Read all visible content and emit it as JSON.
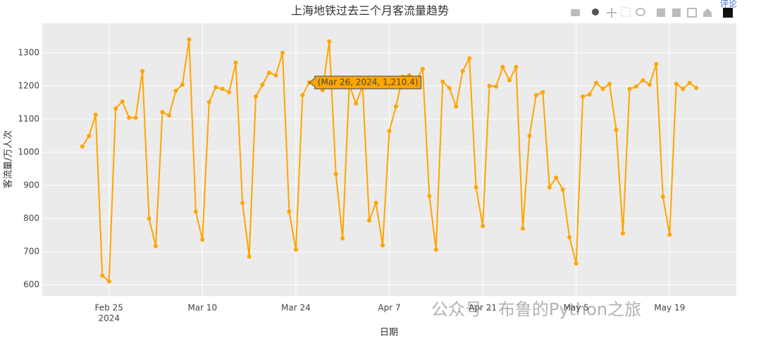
{
  "chart_data": {
    "type": "line",
    "title": "上海地铁过去三个月客流量趋势",
    "x_label": "日期",
    "y_label": "客流量/万人次",
    "x": [
      "2024-02-21",
      "2024-02-22",
      "2024-02-23",
      "2024-02-24",
      "2024-02-25",
      "2024-02-26",
      "2024-02-27",
      "2024-02-28",
      "2024-02-29",
      "2024-03-01",
      "2024-03-02",
      "2024-03-03",
      "2024-03-04",
      "2024-03-05",
      "2024-03-06",
      "2024-03-07",
      "2024-03-08",
      "2024-03-09",
      "2024-03-10",
      "2024-03-11",
      "2024-03-12",
      "2024-03-13",
      "2024-03-14",
      "2024-03-15",
      "2024-03-16",
      "2024-03-17",
      "2024-03-18",
      "2024-03-19",
      "2024-03-20",
      "2024-03-21",
      "2024-03-22",
      "2024-03-23",
      "2024-03-24",
      "2024-03-25",
      "2024-03-26",
      "2024-03-27",
      "2024-03-28",
      "2024-03-29",
      "2024-03-30",
      "2024-03-31",
      "2024-04-01",
      "2024-04-02",
      "2024-04-03",
      "2024-04-04",
      "2024-04-05",
      "2024-04-06",
      "2024-04-07",
      "2024-04-08",
      "2024-04-09",
      "2024-04-10",
      "2024-04-11",
      "2024-04-12",
      "2024-04-13",
      "2024-04-14",
      "2024-04-15",
      "2024-04-16",
      "2024-04-17",
      "2024-04-18",
      "2024-04-19",
      "2024-04-20",
      "2024-04-21",
      "2024-04-22",
      "2024-04-23",
      "2024-04-24",
      "2024-04-25",
      "2024-04-26",
      "2024-04-27",
      "2024-04-28",
      "2024-04-29",
      "2024-04-30",
      "2024-05-01",
      "2024-05-02",
      "2024-05-03",
      "2024-05-04",
      "2024-05-05",
      "2024-05-06",
      "2024-05-07",
      "2024-05-08",
      "2024-05-09",
      "2024-05-10",
      "2024-05-11",
      "2024-05-12",
      "2024-05-13",
      "2024-05-14",
      "2024-05-15",
      "2024-05-16",
      "2024-05-17",
      "2024-05-18",
      "2024-05-19",
      "2024-05-20",
      "2024-05-21",
      "2024-05-22",
      "2024-05-23"
    ],
    "series": [
      {
        "color": "#FFA500",
        "values": [
          1017,
          1049,
          1113,
          628,
          610,
          1132,
          1153,
          1104,
          1104,
          1245,
          800,
          717,
          1121,
          1111,
          1185,
          1204,
          1340,
          821,
          736,
          1151,
          1196,
          1191,
          1181,
          1270,
          847,
          685,
          1168,
          1204,
          1240,
          1232,
          1300,
          821,
          706,
          1172,
          1210.4,
          1220,
          1187,
          1334,
          934,
          740,
          1204,
          1147,
          1200,
          794,
          847,
          719,
          1064,
          1138,
          1228,
          1232,
          1217,
          1251,
          868,
          706,
          1213,
          1194,
          1138,
          1245,
          1283,
          894,
          777,
          1200,
          1198,
          1257,
          1217,
          1257,
          770,
          1049,
          1172,
          1181,
          894,
          923,
          887,
          743,
          664,
          1168,
          1174,
          1209,
          1191,
          1206,
          1068,
          755,
          1191,
          1198,
          1217,
          1204,
          1266,
          866,
          751,
          1206,
          1191,
          1209,
          1194
        ]
      }
    ],
    "xlim": [
      "2024-02-15",
      "2024-05-29"
    ],
    "xticks": [
      {
        "value": "2024-02-25",
        "label": "Feb 25"
      },
      {
        "value": "2024-03-10",
        "label": "Mar 10"
      },
      {
        "value": "2024-03-24",
        "label": "Mar 24"
      },
      {
        "value": "2024-04-07",
        "label": "Apr 7"
      },
      {
        "value": "2024-04-21",
        "label": "Apr 21"
      },
      {
        "value": "2024-05-05",
        "label": "May 5"
      },
      {
        "value": "2024-05-19",
        "label": "May 19"
      }
    ],
    "x_year_label": "2024",
    "ylim": [
      566,
      1389
    ],
    "yticks": [
      600,
      700,
      800,
      900,
      1000,
      1100,
      1200,
      1300
    ],
    "grid": true,
    "tooltip": "(Mar 26, 2024, 1,210.4)",
    "tooltip_index": 34,
    "comment_button": "评论",
    "watermark": "公众号 · 布鲁的Python之旅"
  }
}
